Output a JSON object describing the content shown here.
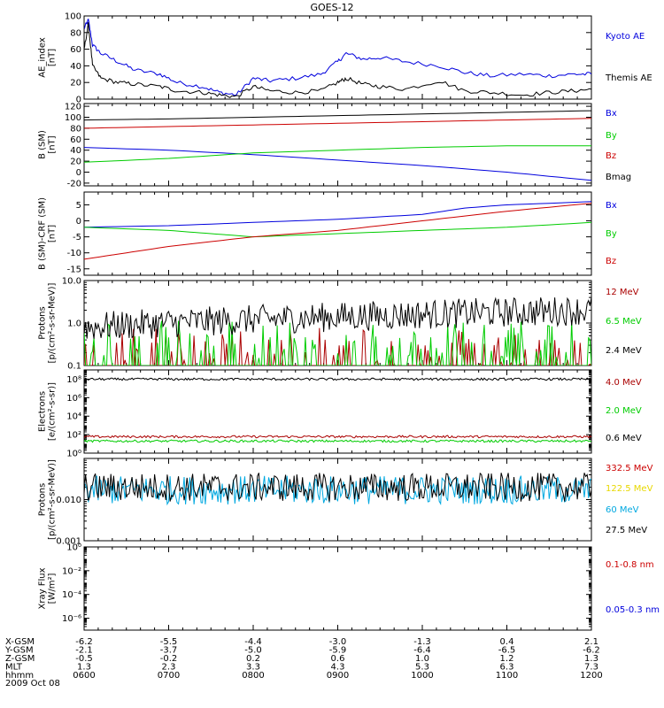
{
  "title": "GOES-12",
  "date": "2009 Oct 08",
  "colors": {
    "black": "#000000",
    "blue": "#0000dd",
    "red": "#cc0000",
    "green": "#00cc00",
    "yellow": "#e8d800",
    "cyan": "#00a8e0",
    "darkred": "#aa0000"
  },
  "ephemeris": {
    "labels": [
      "X-GSM",
      "Y-GSM",
      "Z-GSM",
      "MLT",
      "hhmm"
    ],
    "times": [
      "0600",
      "0700",
      "0800",
      "0900",
      "1000",
      "1100",
      "1200"
    ],
    "rows": [
      [
        "-6.2",
        "-5.5",
        "-4.4",
        "-3.0",
        "-1.3",
        "0.4",
        "2.1"
      ],
      [
        "-2.1",
        "-3.7",
        "-5.0",
        "-5.9",
        "-6.4",
        "-6.5",
        "-6.2"
      ],
      [
        "-0.5",
        "-0.2",
        "0.2",
        "0.6",
        "1.0",
        "1.2",
        "1.3"
      ],
      [
        "1.3",
        "2.3",
        "3.3",
        "4.3",
        "5.3",
        "6.3",
        "7.3"
      ],
      [
        "0600",
        "0700",
        "0800",
        "0900",
        "1000",
        "1100",
        "1200"
      ]
    ]
  },
  "chart_data": [
    {
      "type": "line",
      "ylabel": "AE_index\n[nT]",
      "ylim": [
        0,
        100
      ],
      "scale": "linear",
      "ticks": [
        "0",
        "20",
        "40",
        "60",
        "80",
        "100"
      ],
      "tick_values": [
        0,
        20,
        40,
        60,
        80,
        100
      ],
      "legend": [
        {
          "name": "Kyoto AE",
          "color": "#0000dd"
        },
        {
          "name": "Themis AE",
          "color": "#000000"
        }
      ],
      "series": [
        {
          "name": "Kyoto AE",
          "color": "#0000dd",
          "x": [
            6.0,
            6.05,
            6.1,
            6.2,
            6.4,
            6.6,
            6.9,
            7.1,
            7.4,
            7.6,
            7.8,
            8.0,
            8.2,
            8.5,
            8.8,
            9.0,
            9.1,
            9.3,
            9.5,
            9.8,
            10.2,
            10.5,
            10.8,
            11.2,
            11.5,
            11.8,
            12.0
          ],
          "y": [
            85,
            95,
            65,
            55,
            45,
            35,
            30,
            20,
            15,
            8,
            5,
            25,
            22,
            25,
            30,
            45,
            55,
            48,
            50,
            45,
            40,
            32,
            28,
            30,
            28,
            30,
            30
          ]
        },
        {
          "name": "Themis AE",
          "color": "#000000",
          "x": [
            6.0,
            6.05,
            6.1,
            6.2,
            6.4,
            6.6,
            6.9,
            7.1,
            7.4,
            7.6,
            7.8,
            8.0,
            8.2,
            8.5,
            8.8,
            9.0,
            9.1,
            9.3,
            9.5,
            9.8,
            10.2,
            10.5,
            10.8,
            11.2,
            11.5,
            11.8,
            12.0
          ],
          "y": [
            60,
            90,
            40,
            25,
            20,
            18,
            15,
            10,
            8,
            5,
            3,
            15,
            10,
            8,
            10,
            20,
            25,
            18,
            15,
            12,
            22,
            10,
            8,
            5,
            8,
            10,
            12
          ]
        }
      ]
    },
    {
      "type": "line",
      "ylabel": "B (SM)\n[nT]",
      "ylim": [
        -25,
        125
      ],
      "scale": "linear",
      "ticks": [
        "-20",
        "0",
        "20",
        "40",
        "60",
        "80",
        "100",
        "120"
      ],
      "tick_values": [
        -20,
        0,
        20,
        40,
        60,
        80,
        100,
        120
      ],
      "legend": [
        {
          "name": "Bx",
          "color": "#0000dd"
        },
        {
          "name": "By",
          "color": "#00cc00"
        },
        {
          "name": "Bz",
          "color": "#cc0000"
        },
        {
          "name": "Bmag",
          "color": "#000000"
        }
      ],
      "series": [
        {
          "name": "Bx",
          "color": "#0000dd",
          "x": [
            6,
            7,
            8,
            9,
            10,
            11,
            12
          ],
          "y": [
            45,
            40,
            32,
            22,
            12,
            0,
            -15
          ]
        },
        {
          "name": "By",
          "color": "#00cc00",
          "x": [
            6,
            7,
            8,
            9,
            10,
            11,
            12
          ],
          "y": [
            18,
            25,
            35,
            40,
            45,
            48,
            48
          ]
        },
        {
          "name": "Bz",
          "color": "#cc0000",
          "x": [
            6,
            7,
            8,
            9,
            10,
            11,
            12
          ],
          "y": [
            80,
            83,
            86,
            89,
            92,
            95,
            98
          ]
        },
        {
          "name": "Bmag",
          "color": "#000000",
          "x": [
            6,
            7,
            8,
            9,
            10,
            11,
            12
          ],
          "y": [
            95,
            97,
            100,
            103,
            106,
            109,
            112
          ]
        }
      ]
    },
    {
      "type": "line",
      "ylabel": "B (SM)-CRF (SM)\n[nT]",
      "ylim": [
        -17,
        9
      ],
      "scale": "linear",
      "ticks": [
        "-15",
        "-10",
        "-5",
        "0",
        "5"
      ],
      "tick_values": [
        -15,
        -10,
        -5,
        0,
        5
      ],
      "legend": [
        {
          "name": "Bx",
          "color": "#0000dd"
        },
        {
          "name": "By",
          "color": "#00cc00"
        },
        {
          "name": "Bz",
          "color": "#cc0000"
        }
      ],
      "series": [
        {
          "name": "Bx",
          "color": "#0000dd",
          "x": [
            6,
            7,
            8,
            9,
            10,
            10.5,
            11,
            12
          ],
          "y": [
            -2,
            -1.5,
            -0.5,
            0.5,
            2,
            4,
            5,
            6
          ]
        },
        {
          "name": "By",
          "color": "#00cc00",
          "x": [
            6,
            7,
            7.5,
            8,
            9,
            10,
            11,
            12
          ],
          "y": [
            -2,
            -3,
            -4,
            -5,
            -4,
            -3,
            -2,
            -0.5
          ]
        },
        {
          "name": "Bz",
          "color": "#cc0000",
          "x": [
            6,
            6.5,
            7,
            8,
            9,
            10,
            11,
            12
          ],
          "y": [
            -12,
            -10,
            -8,
            -5,
            -3,
            0,
            3,
            5.5
          ]
        }
      ]
    },
    {
      "type": "line",
      "ylabel": "Protons\n[p/(cm²-s-sr-MeV)]",
      "ylim": [
        0.1,
        10
      ],
      "scale": "log",
      "ticks": [
        "0.1",
        "1.0",
        "10.0"
      ],
      "tick_values": [
        0.1,
        1,
        10
      ],
      "legend": [
        {
          "name": "12 MeV",
          "color": "#aa0000"
        },
        {
          "name": "6.5 MeV",
          "color": "#00cc00"
        },
        {
          "name": "2.4 MeV",
          "color": "#000000"
        }
      ],
      "series": [
        {
          "name": "12 MeV",
          "color": "#aa0000",
          "level": 0.1,
          "noise": "spikes"
        },
        {
          "name": "6.5 MeV",
          "color": "#00cc00",
          "level": 0.15,
          "noise": "spikes"
        },
        {
          "name": "2.4 MeV",
          "color": "#000000",
          "level_start": 0.8,
          "level_end": 2.0,
          "noise": "noisy"
        }
      ]
    },
    {
      "type": "line",
      "ylabel": "Electrons\n[e/(cm²-s-sr)]",
      "ylim": [
        1,
        1000000000
      ],
      "scale": "log",
      "ticks": [
        "10⁰",
        "10²",
        "10⁴",
        "10⁶",
        "10⁸"
      ],
      "tick_values": [
        1,
        100,
        10000,
        1000000,
        100000000
      ],
      "legend": [
        {
          "name": "4.0 MeV",
          "color": "#aa0000"
        },
        {
          "name": "2.0 MeV",
          "color": "#00cc00"
        },
        {
          "name": "0.6 MeV",
          "color": "#000000"
        }
      ],
      "series": [
        {
          "name": "4.0 MeV",
          "color": "#aa0000",
          "level": 60,
          "noise": "low"
        },
        {
          "name": "2.0 MeV",
          "color": "#00cc00",
          "level": 20,
          "noise": "low"
        },
        {
          "name": "0.6 MeV",
          "color": "#000000",
          "level": 100000000,
          "noise": "low"
        }
      ]
    },
    {
      "type": "line",
      "ylabel": "Protons\n[p/(cm²-s-sr-MeV)]",
      "ylim": [
        0.001,
        0.1
      ],
      "scale": "log",
      "ticks": [
        "0.001",
        "0.010"
      ],
      "tick_values": [
        0.001,
        0.01
      ],
      "legend": [
        {
          "name": "332.5 MeV",
          "color": "#cc0000"
        },
        {
          "name": "122.5 MeV",
          "color": "#e8d800"
        },
        {
          "name": "60 MeV",
          "color": "#00a8e0"
        },
        {
          "name": "27.5 MeV",
          "color": "#000000"
        }
      ],
      "series": [
        {
          "name": "60 MeV",
          "color": "#00a8e0",
          "level": 0.017,
          "noise": "noisy"
        },
        {
          "name": "27.5 MeV",
          "color": "#000000",
          "level": 0.02,
          "noise": "noisy"
        }
      ]
    },
    {
      "type": "line",
      "ylabel": "Xray Flux\n[W/m²]",
      "ylim": [
        1e-07,
        1
      ],
      "scale": "log",
      "ticks": [
        "10⁻⁶",
        "10⁻⁴",
        "10⁻²",
        "10⁰"
      ],
      "tick_values": [
        1e-06,
        0.0001,
        0.01,
        1
      ],
      "legend": [
        {
          "name": "0.1-0.8 nm",
          "color": "#cc0000"
        },
        {
          "name": "0.05-0.3 nm",
          "color": "#0000dd"
        }
      ],
      "series": []
    }
  ]
}
